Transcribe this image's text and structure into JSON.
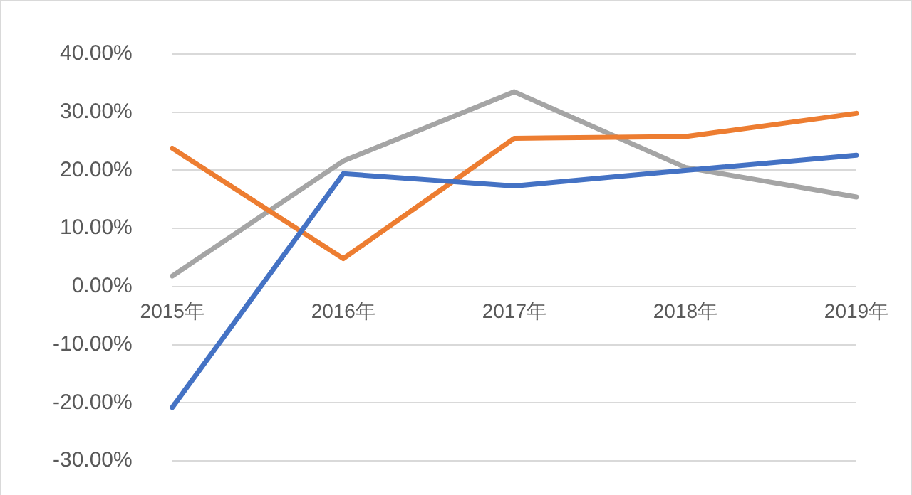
{
  "chart_data": {
    "type": "line",
    "categories": [
      "2015年",
      "2016年",
      "2017年",
      "2018年",
      "2019年"
    ],
    "series": [
      {
        "color": "#4472c4",
        "values": [
          -20.8,
          19.4,
          17.3,
          20.0,
          22.6
        ]
      },
      {
        "color": "#ed7d31",
        "values": [
          23.8,
          4.8,
          25.5,
          25.8,
          29.8
        ]
      },
      {
        "color": "#a5a5a5",
        "values": [
          1.8,
          21.6,
          33.5,
          20.5,
          15.4
        ]
      }
    ],
    "ylim": [
      -30,
      40
    ],
    "yticks": [
      {
        "value": -30,
        "label": "-30.00%"
      },
      {
        "value": -20,
        "label": "-20.00%"
      },
      {
        "value": -10,
        "label": "-10.00%"
      },
      {
        "value": 0,
        "label": "0.00%"
      },
      {
        "value": 10,
        "label": "10.00%"
      },
      {
        "value": 20,
        "label": "20.00%"
      },
      {
        "value": 30,
        "label": "30.00%"
      },
      {
        "value": 40,
        "label": "40.00%"
      }
    ],
    "grid": "y",
    "legend": false,
    "marker": "none",
    "line_style": "solid"
  }
}
